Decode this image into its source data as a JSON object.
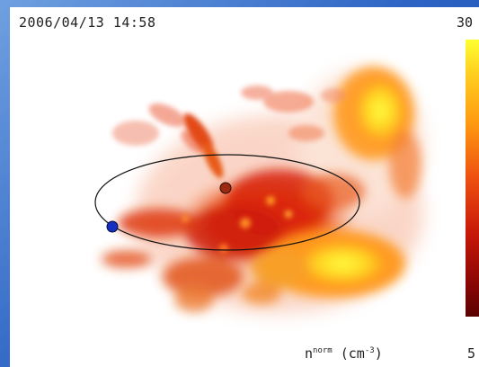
{
  "panel": {
    "timestamp": "2006/04/13 14:58",
    "colorbar_max_label": "30",
    "colorbar_min_label": "5",
    "quantity_label_main": "n",
    "quantity_label_sup": "norm",
    "quantity_unit": "(cm",
    "quantity_unit_sup": "-3",
    "quantity_unit_close": ")"
  },
  "colors": {
    "frame": "#2c63c4",
    "cloud_low": "#e03010",
    "cloud_high": "#ffff30",
    "marker_sun": "#9a2a10",
    "marker_earth": "#1530c0",
    "orbit": "#111111"
  },
  "icons": {
    "sun_marker": "sun-marker-icon",
    "earth_marker": "earth-marker-icon"
  }
}
